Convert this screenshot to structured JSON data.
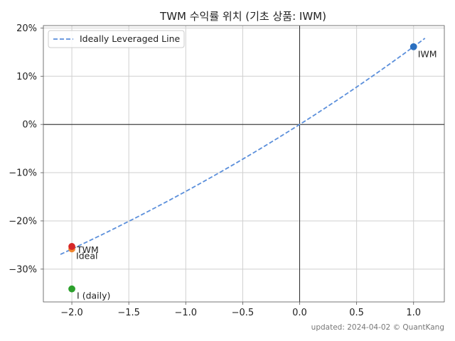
{
  "chart_data": {
    "type": "scatter",
    "title": "TWM 수익률 위치 (기초 상품: IWM)",
    "xlabel": "",
    "ylabel": "",
    "xlim": [
      -2.25,
      1.27
    ],
    "ylim": [
      -0.368,
      0.205
    ],
    "xticks": [
      -2.0,
      -1.5,
      -1.0,
      -0.5,
      0.0,
      0.5,
      1.0
    ],
    "xtick_labels": [
      "−2.0",
      "−1.5",
      "−1.0",
      "−0.5",
      "0.0",
      "0.5",
      "1.0"
    ],
    "yticks": [
      0.2,
      0.1,
      0.0,
      -0.1,
      -0.2,
      -0.3
    ],
    "ytick_labels": [
      "20%",
      "10%",
      "0%",
      "−10%",
      "−20%",
      "−30%"
    ],
    "grid": true,
    "legend": {
      "placement": "top-left",
      "entries": [
        "Ideally Leveraged Line"
      ]
    },
    "line": {
      "name": "Ideally Leveraged Line",
      "color": "#5b8fdb",
      "style": "dashed",
      "base_return": 0.1612,
      "x_range": [
        -2.1,
        1.1
      ]
    },
    "points": [
      {
        "label": "IWM",
        "x": 1.0,
        "y": 0.1612,
        "color": "#2b70c0"
      },
      {
        "label": "Ideal",
        "x": -2.0,
        "y": -0.258,
        "color": "#f0872f"
      },
      {
        "label": "TWM",
        "x": -2.0,
        "y": -0.253,
        "color": "#d62728"
      },
      {
        "label": "I (daily)",
        "x": -2.0,
        "y": -0.341,
        "color": "#2ca02c"
      }
    ],
    "footer": "updated: 2024-04-02 © QuantKang"
  }
}
